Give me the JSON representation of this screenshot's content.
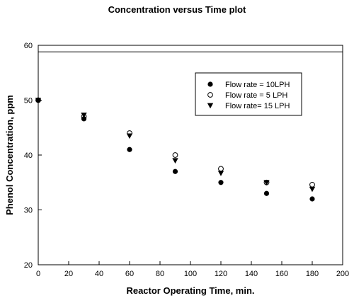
{
  "chart_data": {
    "type": "scatter",
    "title": "Concentration versus Time plot",
    "xlabel": "Reactor Operating Time, min.",
    "ylabel": "Phenol Concentration, ppm",
    "xlim": [
      0,
      200
    ],
    "ylim": [
      20,
      60
    ],
    "xticks": [
      0,
      20,
      40,
      60,
      80,
      100,
      120,
      140,
      160,
      180,
      200
    ],
    "yticks": [
      20,
      30,
      40,
      50,
      60
    ],
    "grid": false,
    "legend_position": "top-right",
    "reference_line_y": 58.8,
    "series": [
      {
        "name": "Flow rate = 10LPH",
        "marker": "filled-circle",
        "x": [
          0,
          30,
          60,
          90,
          120,
          150,
          180
        ],
        "y": [
          50,
          46.6,
          41,
          37,
          35,
          33,
          32
        ]
      },
      {
        "name": "Flow rate = 5 LPH",
        "marker": "open-circle",
        "x": [
          0,
          30,
          60,
          90,
          120,
          150,
          180
        ],
        "y": [
          50,
          47,
          44,
          40,
          37.5,
          35,
          34.6
        ]
      },
      {
        "name": "Flow rate= 15 LPH",
        "marker": "filled-triangle-down",
        "x": [
          0,
          30,
          60,
          90,
          120,
          150,
          180
        ],
        "y": [
          50,
          47.3,
          43.5,
          39,
          36.7,
          35,
          33.8
        ]
      }
    ]
  }
}
